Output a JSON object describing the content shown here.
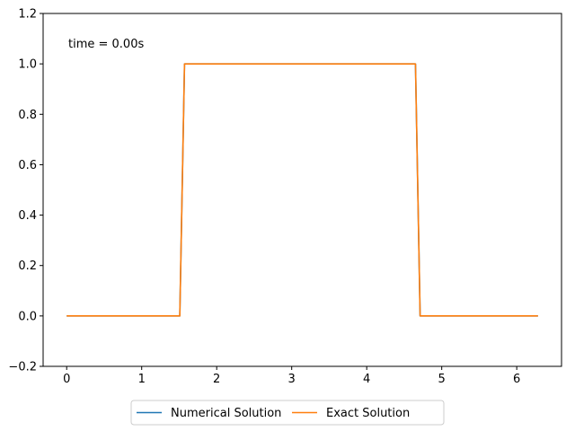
{
  "chart_data": {
    "type": "line",
    "title": "",
    "xlabel": "",
    "ylabel": "",
    "xlim": [
      -0.314,
      6.597
    ],
    "ylim": [
      -0.2,
      1.2
    ],
    "x_ticks": [
      0,
      1,
      2,
      3,
      4,
      5,
      6
    ],
    "y_ticks": [
      -0.2,
      0.0,
      0.2,
      0.4,
      0.6,
      0.8,
      1.0,
      1.2
    ],
    "x_tick_labels": [
      "0",
      "1",
      "2",
      "3",
      "4",
      "5",
      "6"
    ],
    "y_tick_labels": [
      "−0.2",
      "0.0",
      "0.2",
      "0.4",
      "0.6",
      "0.8",
      "1.0",
      "1.2"
    ],
    "annotation": "time = 0.00s",
    "legend_position": "lower-center-outside",
    "grid": false,
    "series": [
      {
        "name": "Numerical Solution",
        "color": "#1f77b4",
        "x": [
          0,
          1.508,
          1.571,
          4.65,
          4.712,
          6.283
        ],
        "y": [
          0,
          0,
          1,
          1,
          0,
          0
        ]
      },
      {
        "name": "Exact Solution",
        "color": "#ff7f0e",
        "x": [
          0,
          1.508,
          1.571,
          4.65,
          4.712,
          6.283
        ],
        "y": [
          0,
          0,
          1,
          1,
          0,
          0
        ]
      }
    ]
  }
}
